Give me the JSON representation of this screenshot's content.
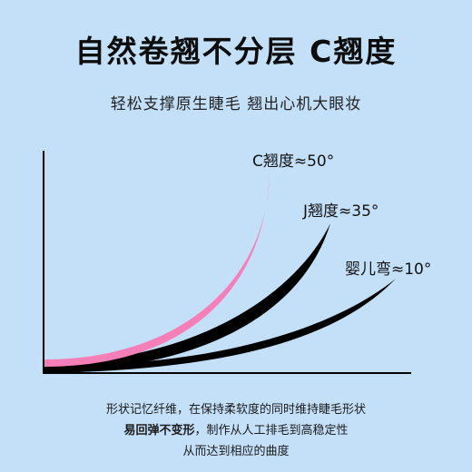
{
  "header": {
    "title": "自然卷翘不分层 C翘度",
    "subtitle": "轻松支撑原生睫毛 翘出心机大眼妆"
  },
  "curves": [
    {
      "id": "c-curl",
      "label": "C翘度≈50°",
      "color": "#f77fb8"
    },
    {
      "id": "j-curl",
      "label": "J翘度≈35°",
      "color": "#000000"
    },
    {
      "id": "baby-curl",
      "label": "婴儿弯≈10°",
      "color": "#000000"
    }
  ],
  "footer": {
    "line1": "形状记忆纤维，在保持柔软度的同时维持睫毛形状",
    "line2_bold": "易回弹不变形",
    "line2_rest": "，制作从人工排毛到高稳定性",
    "line3": "从而达到相应的曲度"
  }
}
